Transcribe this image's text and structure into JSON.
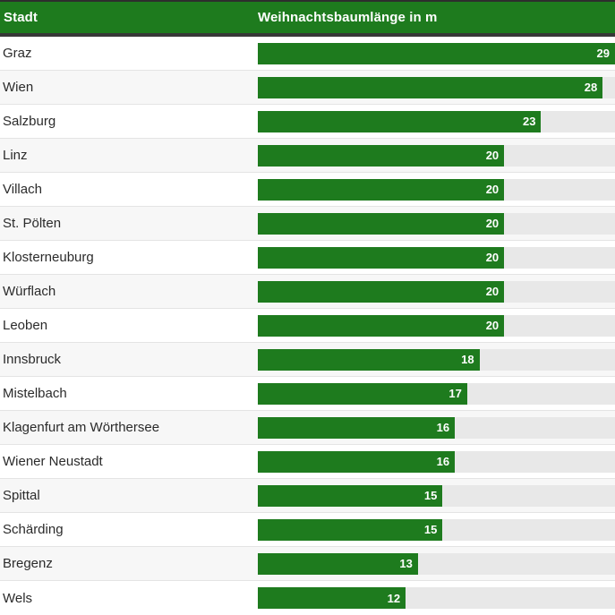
{
  "header": {
    "city_label": "Stadt",
    "value_label": "Weihnachtsbaumlänge in m"
  },
  "chart_data": {
    "type": "bar",
    "orientation": "horizontal",
    "title": "Weihnachtsbaumlänge in m",
    "xlabel": "Stadt",
    "ylabel": "Weihnachtsbaumlänge in m",
    "xlim": [
      0,
      29
    ],
    "grid": false,
    "legend": false,
    "categories": [
      "Graz",
      "Wien",
      "Salzburg",
      "Linz",
      "Villach",
      "St. Pölten",
      "Klosterneuburg",
      "Würflach",
      "Leoben",
      "Innsbruck",
      "Mistelbach",
      "Klagenfurt am Wörthersee",
      "Wiener Neustadt",
      "Spittal",
      "Schärding",
      "Bregenz",
      "Wels"
    ],
    "values": [
      29,
      28,
      23,
      20,
      20,
      20,
      20,
      20,
      20,
      18,
      17,
      16,
      16,
      15,
      15,
      13,
      12
    ]
  },
  "theme": {
    "bar_color": "#1e7b1e",
    "header_bg": "#1e7b1e",
    "header_text": "#ffffff",
    "track_color": "#e8e8e8",
    "row_alt_bg": "#f7f7f7",
    "divider_color": "#383838",
    "label_color": "#2b2b2b",
    "value_text": "#ffffff"
  }
}
